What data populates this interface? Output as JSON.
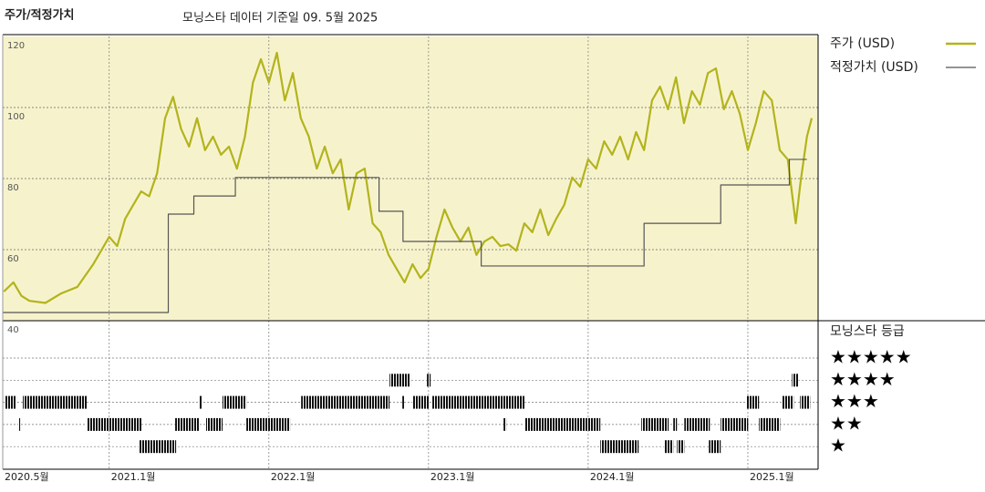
{
  "chart_data": {
    "type": "line",
    "title": "주가/적정가치",
    "subtitle": "모닝스타 데이터 기준일 09. 5월 2025",
    "xlim": [
      2020.333,
      2025.44
    ],
    "xticks": [
      {
        "value": 2020.333,
        "label": "2020.5월"
      },
      {
        "value": 2021.0,
        "label": "2021.1월"
      },
      {
        "value": 2022.0,
        "label": "2022.1월"
      },
      {
        "value": 2023.0,
        "label": "2023.1월"
      },
      {
        "value": 2024.0,
        "label": "2024.1월"
      },
      {
        "value": 2025.0,
        "label": "2025.1월"
      }
    ],
    "ylim": [
      40,
      120
    ],
    "yticks": [
      40,
      60,
      80,
      100,
      120
    ],
    "grid": true,
    "background": "#f6f3cc",
    "series": [
      {
        "name": "주가 (USD)",
        "color": "#b3b31d",
        "x": [
          2020.34,
          2020.4,
          2020.45,
          2020.5,
          2020.6,
          2020.7,
          2020.8,
          2020.9,
          2021.0,
          2021.05,
          2021.1,
          2021.2,
          2021.25,
          2021.3,
          2021.35,
          2021.4,
          2021.45,
          2021.5,
          2021.55,
          2021.6,
          2021.65,
          2021.7,
          2021.75,
          2021.8,
          2021.85,
          2021.9,
          2021.95,
          2022.0,
          2022.05,
          2022.1,
          2022.15,
          2022.2,
          2022.25,
          2022.3,
          2022.35,
          2022.4,
          2022.45,
          2022.5,
          2022.55,
          2022.6,
          2022.65,
          2022.7,
          2022.75,
          2022.8,
          2022.85,
          2022.9,
          2022.95,
          2023.0,
          2023.05,
          2023.1,
          2023.15,
          2023.2,
          2023.25,
          2023.3,
          2023.35,
          2023.4,
          2023.45,
          2023.5,
          2023.55,
          2023.6,
          2023.65,
          2023.7,
          2023.75,
          2023.8,
          2023.85,
          2023.9,
          2023.95,
          2024.0,
          2024.05,
          2024.1,
          2024.15,
          2024.2,
          2024.25,
          2024.3,
          2024.35,
          2024.4,
          2024.45,
          2024.5,
          2024.55,
          2024.6,
          2024.65,
          2024.7,
          2024.75,
          2024.8,
          2024.85,
          2024.9,
          2024.95,
          2025.0,
          2025.05,
          2025.1,
          2025.15,
          2025.2,
          2025.25,
          2025.3,
          2025.33,
          2025.37,
          2025.4
        ],
        "values": [
          48.2,
          50.8,
          47,
          45.6,
          45,
          47.7,
          49.5,
          55.9,
          63.6,
          61,
          68.7,
          76.4,
          75,
          81.5,
          97,
          103,
          94,
          89,
          97,
          88,
          91.8,
          86.7,
          89,
          82.8,
          91.8,
          107,
          113.6,
          107,
          115.4,
          102,
          109.7,
          97,
          91.8,
          82.8,
          89,
          81.5,
          85.4,
          71.3,
          81.5,
          82.8,
          67.4,
          64.9,
          58.5,
          54.6,
          50.8,
          55.9,
          52,
          54.6,
          63.6,
          71.3,
          66.2,
          62.3,
          66.2,
          58.5,
          62.3,
          63.6,
          61,
          61.5,
          59.7,
          67.4,
          64.9,
          71.3,
          64.1,
          68.7,
          72.6,
          80.3,
          77.7,
          85.4,
          82.8,
          90.5,
          86.7,
          91.8,
          85.4,
          93.1,
          88,
          102,
          105.9,
          99.5,
          108.5,
          95.6,
          104.6,
          100.8,
          109.7,
          111,
          99.5,
          104.6,
          98.2,
          88,
          95.6,
          104.6,
          102,
          88,
          85.4,
          67.4,
          79,
          91.8,
          97
        ]
      },
      {
        "name": "적정가치 (USD)",
        "color": "#555555",
        "drawstyle": "steps-post",
        "x": [
          2020.333,
          2021.37,
          2021.53,
          2021.79,
          2022.69,
          2022.84,
          2023.33,
          2024.35,
          2024.83,
          2025.26,
          2025.37
        ],
        "values": [
          42.3,
          70,
          75.1,
          80.3,
          70.8,
          62.3,
          55.4,
          67.4,
          78.2,
          85.4,
          85.4
        ]
      }
    ],
    "rating": {
      "title": "모닝스타 등급",
      "levels": [
        {
          "value": 5,
          "label": "★★★★★"
        },
        {
          "value": 4,
          "label": "★★★★"
        },
        {
          "value": 3,
          "label": "★★★"
        },
        {
          "value": 2,
          "label": "★★"
        },
        {
          "value": 1,
          "label": "★"
        }
      ],
      "segments": [
        [
          2020.344,
          2020.419,
          3
        ],
        [
          2020.459,
          2020.859,
          3
        ],
        [
          2021.562,
          2021.584,
          3
        ],
        [
          2021.71,
          2021.859,
          3
        ],
        [
          2022.202,
          2022.756,
          3
        ],
        [
          2022.836,
          2022.847,
          3
        ],
        [
          2022.899,
          2023.002,
          3
        ],
        [
          2023.024,
          2023.602,
          3
        ],
        [
          2024.99,
          2025.07,
          3
        ],
        [
          2025.213,
          2025.287,
          3
        ],
        [
          2025.327,
          2025.39,
          3
        ],
        [
          2020.43,
          2020.442,
          2
        ],
        [
          2020.859,
          2021.202,
          2
        ],
        [
          2021.413,
          2021.562,
          2
        ],
        [
          2021.607,
          2021.71,
          2
        ],
        [
          2021.859,
          2022.133,
          2
        ],
        [
          2023.47,
          2023.487,
          2
        ],
        [
          2023.602,
          2024.076,
          2
        ],
        [
          2024.333,
          2024.504,
          2
        ],
        [
          2024.533,
          2024.556,
          2
        ],
        [
          2024.602,
          2024.762,
          2
        ],
        [
          2024.83,
          2025.002,
          2
        ],
        [
          2025.07,
          2025.202,
          2
        ],
        [
          2021.184,
          2021.419,
          1
        ],
        [
          2024.076,
          2024.316,
          1
        ],
        [
          2024.476,
          2024.533,
          1
        ],
        [
          2024.556,
          2024.602,
          1
        ],
        [
          2024.756,
          2024.83,
          1
        ],
        [
          2022.756,
          2022.887,
          4
        ],
        [
          2022.99,
          2023.013,
          4
        ],
        [
          2025.276,
          2025.316,
          4
        ]
      ]
    }
  }
}
